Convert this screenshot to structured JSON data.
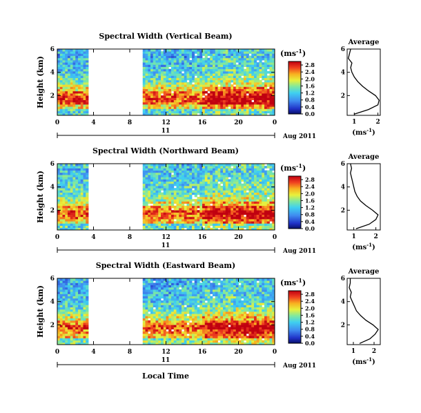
{
  "figure": {
    "date_label": "Aug 2011",
    "day_label": "11",
    "xlabel": "Local Time",
    "colorbar_unit": "(ms",
    "colorbar_unit_exp": "-1",
    "avg_title": "Average",
    "avg_xlabel": "(ms",
    "avg_xlabel_exp": "-1"
  },
  "chart_data": [
    {
      "type": "heatmap",
      "title": "Spectral Width (Vertical Beam)",
      "ylabel": "Height (km)",
      "x_ticks": [
        "0",
        "4",
        "8",
        "12",
        "16",
        "20",
        "0"
      ],
      "x_range_hours": [
        0,
        24
      ],
      "y_ticks": [
        "2",
        "4",
        "6"
      ],
      "ylim_km": [
        0.3,
        6.0
      ],
      "data_gap_hours": [
        3.3,
        9.3
      ],
      "colorbar_ticks": [
        "0.0",
        "0.4",
        "0.8",
        "1.2",
        "1.6",
        "2.0",
        "2.4",
        "2.8"
      ],
      "colorbar_range": [
        0.0,
        3.0
      ],
      "average_profile": {
        "x_ticks": [
          "1",
          "2"
        ],
        "xlim": [
          0.7,
          2.1
        ],
        "y_ticks": [
          "2",
          "4",
          "6"
        ],
        "height_km": [
          0.4,
          0.8,
          1.2,
          1.6,
          2.0,
          2.4,
          2.8,
          3.2,
          3.6,
          4.0,
          4.4,
          4.8,
          5.2,
          5.6,
          6.0
        ],
        "width_ms": [
          1.0,
          1.6,
          2.0,
          2.05,
          1.9,
          1.6,
          1.35,
          1.15,
          1.0,
          0.9,
          0.85,
          0.9,
          0.75,
          0.8,
          0.85
        ]
      }
    },
    {
      "type": "heatmap",
      "title": "Spectral Width (Northward Beam)",
      "ylabel": "Height (km)",
      "x_ticks": [
        "0",
        "4",
        "8",
        "12",
        "16",
        "20",
        "0"
      ],
      "x_range_hours": [
        0,
        24
      ],
      "y_ticks": [
        "2",
        "4",
        "6"
      ],
      "ylim_km": [
        0.3,
        6.0
      ],
      "data_gap_hours": [
        3.3,
        9.3
      ],
      "colorbar_ticks": [
        "0.0",
        "0.4",
        "0.8",
        "1.2",
        "1.6",
        "2.0",
        "2.4",
        "2.8"
      ],
      "colorbar_range": [
        0.0,
        3.0
      ],
      "average_profile": {
        "x_ticks": [
          "1",
          "2"
        ],
        "xlim": [
          0.7,
          2.2
        ],
        "y_ticks": [
          "2",
          "4",
          "6"
        ],
        "height_km": [
          0.4,
          0.8,
          1.2,
          1.6,
          2.0,
          2.4,
          2.8,
          3.2,
          3.6,
          4.0,
          4.4,
          4.8,
          5.2,
          5.6,
          6.0
        ],
        "width_ms": [
          1.1,
          1.7,
          2.0,
          2.1,
          1.85,
          1.55,
          1.3,
          1.15,
          1.05,
          1.0,
          0.95,
          0.9,
          0.85,
          0.9,
          0.85
        ]
      }
    },
    {
      "type": "heatmap",
      "title": "Spectral Width (Eastward Beam)",
      "ylabel": "Height (km)",
      "x_ticks": [
        "0",
        "4",
        "8",
        "12",
        "16",
        "20",
        "0"
      ],
      "x_range_hours": [
        0,
        24
      ],
      "y_ticks": [
        "2",
        "4",
        "6"
      ],
      "ylim_km": [
        0.3,
        6.0
      ],
      "data_gap_hours": [
        3.3,
        9.3
      ],
      "colorbar_ticks": [
        "0.0",
        "0.4",
        "0.8",
        "1.2",
        "1.6",
        "2.0",
        "2.4",
        "2.8"
      ],
      "colorbar_range": [
        0.0,
        3.0
      ],
      "average_profile": {
        "x_ticks": [
          "1",
          "2"
        ],
        "xlim": [
          0.7,
          2.3
        ],
        "y_ticks": [
          "2",
          "4",
          "6"
        ],
        "height_km": [
          0.4,
          0.8,
          1.2,
          1.6,
          2.0,
          2.4,
          2.8,
          3.2,
          3.6,
          4.0,
          4.4,
          4.8,
          5.2,
          5.6,
          6.0
        ],
        "width_ms": [
          1.3,
          1.8,
          2.05,
          2.2,
          1.95,
          1.6,
          1.35,
          1.15,
          1.05,
          0.95,
          0.85,
          0.9,
          0.8,
          0.85,
          0.85
        ]
      }
    }
  ]
}
